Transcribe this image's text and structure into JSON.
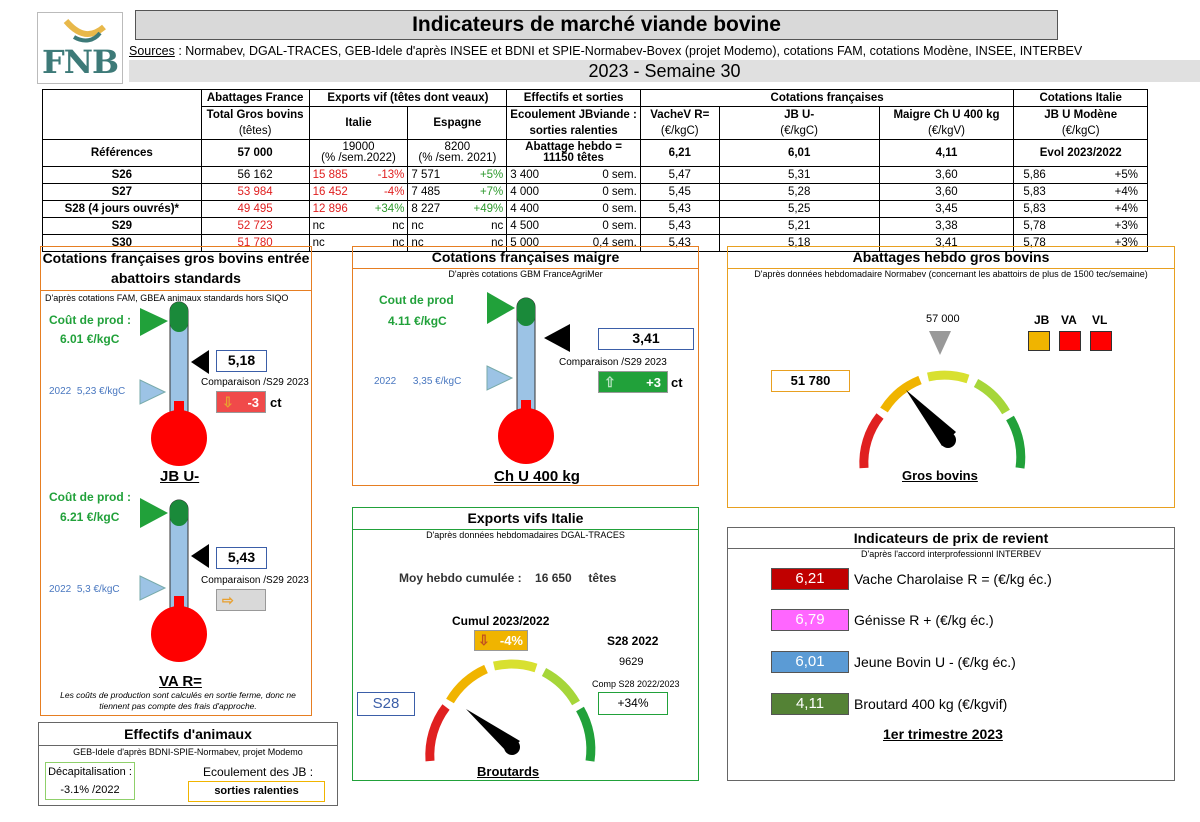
{
  "header": {
    "title": "Indicateurs de marché viande bovine",
    "sources_label": "Sources",
    "sources_text": " : Normabev, DGAL-TRACES, GEB-Idele d'après INSEE et BDNI et SPIE-Normabev-Bovex (projet Modemo), cotations FAM, cotations Modène, INSEE, INTERBEV",
    "week": "2023 - Semaine 30",
    "logo": "FNB"
  },
  "table": {
    "h_abattages": "Abattages France",
    "h_exports": "Exports vif (têtes dont veaux)",
    "h_effectifs": "Effectifs et sorties",
    "h_cot_fr": "Cotations françaises",
    "h_cot_it": "Cotations Italie",
    "h_total": "Total Gros bovins",
    "h_tetes": "(têtes)",
    "h_italie": "Italie",
    "h_espagne": "Espagne",
    "h_ecoulement1": "Ecoulement JBviande :",
    "h_ecoulement2": "sorties ralenties",
    "h_vache": "VacheV R=",
    "h_vache_u": "(€/kgC)",
    "h_jb": "JB U-",
    "h_jb_u": "(€/kgC)",
    "h_maigre": "Maigre Ch U 400 kg",
    "h_maigre_u": "(€/kgV)",
    "h_modene": "JB U Modène",
    "h_modene_u": "(€/kgC)",
    "ref_label": "Références",
    "ref_abatt": "57 000",
    "ref_it1": "19000",
    "ref_it2": "(% /sem.2022)",
    "ref_es1": "8200",
    "ref_es2": "(% /sem. 2021)",
    "ref_eff1": "Abattage hebdo =",
    "ref_eff2": "11150 têtes",
    "ref_vache": "6,21",
    "ref_jb": "6,01",
    "ref_maigre": "4,11",
    "ref_modene": "Evol 2023/2022",
    "rows": [
      {
        "label": "S26",
        "abatt": "56 162",
        "it": "15 885",
        "it_pct": "-13%",
        "es": "7 571",
        "es_pct": "+5%",
        "eff": "3 400",
        "eff_sem": "0 sem.",
        "vache": "5,47",
        "jb": "5,31",
        "maigre": "3,60",
        "mod": "5,86",
        "mod_pct": "+5%"
      },
      {
        "label": "S27",
        "abatt": "53 984",
        "it": "16 452",
        "it_pct": "-4%",
        "es": "7 485",
        "es_pct": "+7%",
        "eff": "4 000",
        "eff_sem": "0 sem.",
        "vache": "5,45",
        "jb": "5,28",
        "maigre": "3,60",
        "mod": "5,83",
        "mod_pct": "+4%"
      },
      {
        "label": "S28 (4 jours ouvrés)*",
        "abatt": "49 495",
        "it": "12 896",
        "it_pct": "+34%",
        "es": "8 227",
        "es_pct": "+49%",
        "eff": "4 400",
        "eff_sem": "0 sem.",
        "vache": "5,43",
        "jb": "5,25",
        "maigre": "3,45",
        "mod": "5,83",
        "mod_pct": "+4%"
      },
      {
        "label": "S29",
        "abatt": "52 723",
        "it": "nc",
        "it_pct": "nc",
        "es": "nc",
        "es_pct": "nc",
        "eff": "4 500",
        "eff_sem": "0 sem.",
        "vache": "5,43",
        "jb": "5,21",
        "maigre": "3,38",
        "mod": "5,78",
        "mod_pct": "+3%"
      },
      {
        "label": "S30",
        "abatt": "51 780",
        "it": "nc",
        "it_pct": "nc",
        "es": "nc",
        "es_pct": "nc",
        "eff": "5 000",
        "eff_sem": "0,4 sem.",
        "vache": "5,43",
        "jb": "5,18",
        "maigre": "3,41",
        "mod": "5,78",
        "mod_pct": "+3%"
      }
    ]
  },
  "cot_gb": {
    "title": "Cotations françaises gros bovins entrée abattoirs standards",
    "sub": "D'après cotations FAM, GBEA animaux standards hors SIQO",
    "jb": {
      "cout_label": "Coût de prod :",
      "cout_val": "6.01 €/kgC",
      "value": "5,18",
      "comp": "Comparaison /S29 2023",
      "delta": "-3",
      "unit": "ct",
      "y2022": "2022",
      "y2022_val": "5,23 €/kgC",
      "name": "JB U-"
    },
    "va": {
      "cout_label": "Coût de prod :",
      "cout_val": "6.21 €/kgC",
      "value": "5,43",
      "comp": "Comparaison /S29 2023",
      "y2022": "2022",
      "y2022_val": "5,3 €/kgC",
      "name": "VA R="
    },
    "note": "Les coûts de production sont calculés en sortie ferme, donc ne tiennent pas compte des frais d'approche."
  },
  "cot_maigre": {
    "title": "Cotations françaises maigre",
    "sub": "D'après cotations GBM FranceAgriMer",
    "cout_label": "Cout de prod",
    "cout_val": "4.11 €/kgC",
    "value": "3,41",
    "comp": "Comparaison /S29 2023",
    "delta": "+3",
    "unit": "ct",
    "y2022": "2022",
    "y2022_val": "3,35 €/kgC",
    "name": "Ch U 400 kg"
  },
  "abattages": {
    "title": "Abattages hebdo gros bovins",
    "sub": "D'après données hebdomadaire Normabev (concernant les abattoirs de plus de 1500 tec/semaine)",
    "ref": "57 000",
    "value": "51 780",
    "leg_jb": "JB",
    "leg_va": "VA",
    "leg_vl": "VL",
    "name": "Gros bovins"
  },
  "exports": {
    "title": "Exports vifs  Italie",
    "sub": "D'après données hebdomadaires DGAL-TRACES",
    "moy_label": "Moy hebdo cumulée :",
    "moy_val": "16 650",
    "moy_unit": "têtes",
    "cumul_label": "Cumul 2023/2022",
    "cumul_val": "-4%",
    "s28_label": "S28 2022",
    "s28_val": "9629",
    "comp_label": "Comp S28 2022/2023",
    "comp_val": "+34%",
    "week": "S28",
    "name": "Broutards"
  },
  "effectifs": {
    "title": "Effectifs d'animaux",
    "sub": "GEB-Idele d'après BDNI-SPIE-Normabev, projet Modemo",
    "decap_label": "Décapitalisation :",
    "decap_val": "-3.1% /2022",
    "ecoul_label": "Ecoulement des JB :",
    "ecoul_val": "sorties ralenties"
  },
  "revient": {
    "title": "Indicateurs de prix de revient",
    "sub": "D'après l'accord interprofessionnl INTERBEV",
    "items": [
      {
        "value": "6,21",
        "label": "Vache Charolaise R = (€/kg éc.)",
        "color": "#c00000"
      },
      {
        "value": "6,79",
        "label": "Génisse R + (€/kg éc.)",
        "color": "#ff66ff"
      },
      {
        "value": "6,01",
        "label": "Jeune Bovin U - (€/kg éc.)",
        "color": "#5b9bd5"
      },
      {
        "value": "4,11",
        "label": "Broutard 400 kg (€/kgvif)",
        "color": "#548235"
      }
    ],
    "period": "1er trimestre 2023"
  }
}
